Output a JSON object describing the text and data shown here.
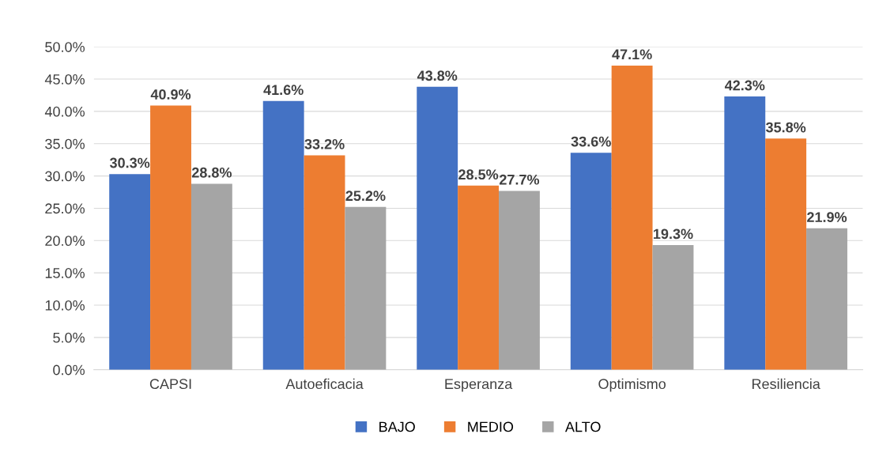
{
  "chart_data": {
    "type": "bar",
    "categories": [
      "CAPSI",
      "Autoeficacia",
      "Esperanza",
      "Optimismo",
      "Resiliencia"
    ],
    "series": [
      {
        "name": "BAJO",
        "color": "#4472c4",
        "values": [
          30.3,
          41.6,
          43.8,
          33.6,
          42.3
        ],
        "value_labels": [
          "30.3%",
          "41.6%",
          "43.8%",
          "33.6%",
          "42.3%"
        ]
      },
      {
        "name": "MEDIO",
        "color": "#ed7d31",
        "values": [
          40.9,
          33.2,
          28.5,
          47.1,
          35.8
        ],
        "value_labels": [
          "40.9%",
          "33.2%",
          "28.5%",
          "47.1%",
          "35.8%"
        ]
      },
      {
        "name": "ALTO",
        "color": "#a5a5a5",
        "values": [
          28.8,
          25.2,
          27.7,
          19.3,
          21.9
        ],
        "value_labels": [
          "28.8%",
          "25.2%",
          "27.7%",
          "19.3%",
          "21.9%"
        ]
      }
    ],
    "ylim": [
      0,
      50
    ],
    "yticks": [
      {
        "value": 0,
        "label": "0.0%"
      },
      {
        "value": 5,
        "label": "5.0%"
      },
      {
        "value": 10,
        "label": "10.0%"
      },
      {
        "value": 15,
        "label": "15.0%"
      },
      {
        "value": 20,
        "label": "20.0%"
      },
      {
        "value": 25,
        "label": "25.0%"
      },
      {
        "value": 30,
        "label": "30.0%"
      },
      {
        "value": 35,
        "label": "35.0%"
      },
      {
        "value": 40,
        "label": "40.0%"
      },
      {
        "value": 45,
        "label": "45.0%"
      },
      {
        "value": 50,
        "label": "50.0%"
      }
    ],
    "grid": "y",
    "legend": "bottom"
  }
}
